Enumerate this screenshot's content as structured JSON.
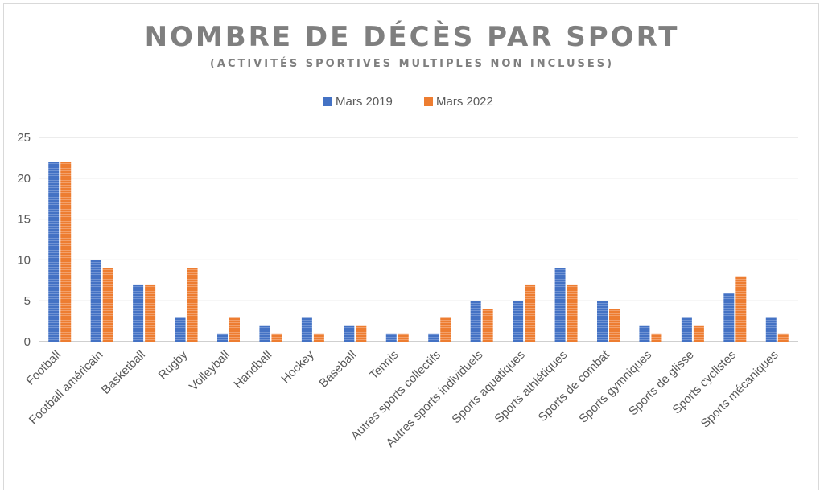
{
  "chart_data": {
    "type": "bar",
    "title": "NOMBRE DE DÉCÈS PAR SPORT",
    "subtitle": "(ACTIVITÉS SPORTIVES MULTIPLES NON INCLUSES)",
    "categories": [
      "Football",
      "Football américain",
      "Basketball",
      "Rugby",
      "Volleyball",
      "Handball",
      "Hockey",
      "Baseball",
      "Tennis",
      "Autres sports collectifs",
      "Autres sports individuels",
      "Sports aquatiques",
      "Sports athlétiques",
      "Sports de combat",
      "Sports gymniques",
      "Sports de glisse",
      "Sports cyclistes",
      "Sports mécaniques"
    ],
    "series": [
      {
        "name": "Mars 2019",
        "color": "#4472c4",
        "values": [
          22,
          10,
          7,
          3,
          1,
          2,
          3,
          2,
          1,
          1,
          5,
          5,
          9,
          5,
          2,
          3,
          6,
          3
        ]
      },
      {
        "name": "Mars 2022",
        "color": "#ed7d31",
        "values": [
          22,
          9,
          7,
          9,
          3,
          1,
          1,
          2,
          1,
          3,
          4,
          7,
          7,
          4,
          1,
          2,
          8,
          1
        ]
      }
    ],
    "ylim": [
      0,
      25
    ],
    "yticks": [
      0,
      5,
      10,
      15,
      20,
      25
    ],
    "grid": true,
    "legend": "top-center"
  }
}
